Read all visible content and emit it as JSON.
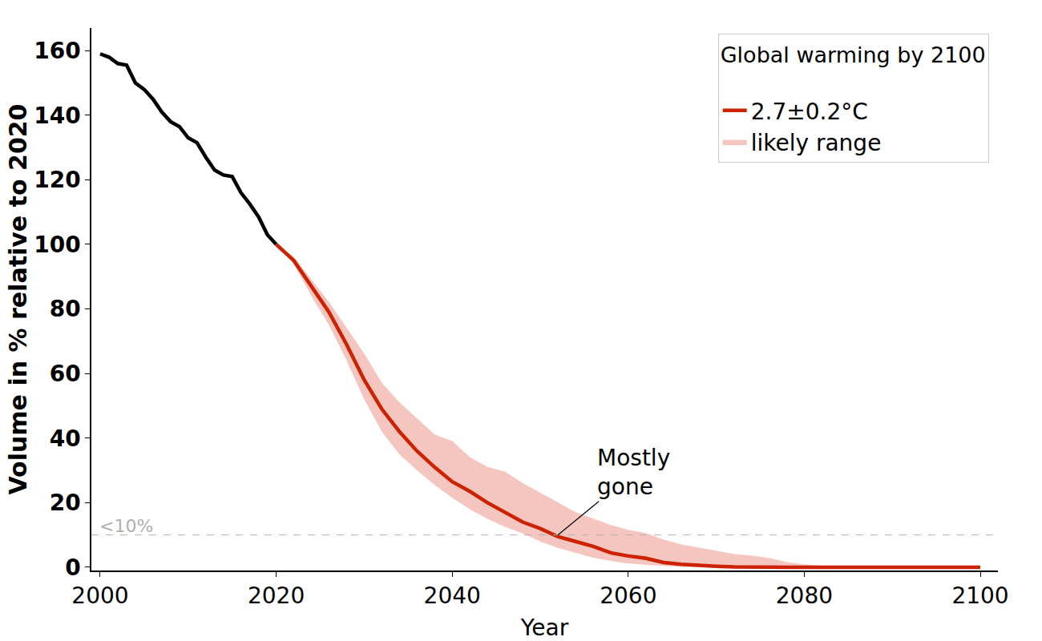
{
  "chart_data": {
    "type": "line",
    "x_label": "Year",
    "y_label": "Volume in % relative to 2020",
    "legend_title": "Global warming by 2100",
    "legend": "upper right",
    "grid": false,
    "xlim": [
      1999,
      2102
    ],
    "xticks": [
      2000,
      2020,
      2040,
      2060,
      2080,
      2100
    ],
    "ylim": [
      -1,
      167
    ],
    "yticks": [
      0,
      20,
      40,
      60,
      80,
      100,
      120,
      140,
      160
    ],
    "reference_line": {
      "value": 10,
      "label": "<10%",
      "color": "#b0b0b0",
      "line_style": "dashed"
    },
    "annotations": [
      {
        "text": "Mostly\ngone",
        "x": 2052,
        "y": 10
      }
    ],
    "series": [
      {
        "color": "#000000",
        "x": [
          2000,
          2001,
          2002,
          2003,
          2004,
          2005,
          2006,
          2007,
          2008,
          2009,
          2010,
          2011,
          2012,
          2013,
          2014,
          2015,
          2016,
          2017,
          2018,
          2019,
          2020
        ],
        "values": [
          159,
          158,
          156,
          155.5,
          150,
          148,
          145,
          141,
          138,
          136.5,
          133,
          131.5,
          127,
          123,
          121.5,
          121,
          116,
          112.5,
          108.5,
          103,
          100
        ]
      },
      {
        "name": "likely range",
        "type": "band",
        "color": "#f5c6c0",
        "x": [
          2020,
          2022,
          2024,
          2026,
          2028,
          2030,
          2032,
          2034,
          2036,
          2038,
          2040,
          2042,
          2044,
          2046,
          2048,
          2050,
          2052,
          2054,
          2056,
          2058,
          2060,
          2062,
          2064,
          2066,
          2068,
          2070,
          2072,
          2074,
          2076,
          2078,
          2080,
          2082,
          2084,
          2086,
          2088,
          2090,
          2092,
          2094,
          2096,
          2098,
          2100
        ],
        "lower": [
          100,
          94,
          84,
          75,
          64,
          52,
          42,
          35,
          30,
          25.5,
          21.5,
          18,
          15,
          12.5,
          10.5,
          8,
          6,
          4.5,
          3,
          2,
          1.2,
          0.8,
          0.4,
          0.2,
          0.1,
          0,
          0,
          0,
          0,
          0,
          0,
          0,
          0,
          0,
          0,
          0,
          0,
          0,
          0,
          0,
          0
        ],
        "upper": [
          100,
          96,
          89,
          82,
          74,
          66,
          57,
          51,
          46,
          41,
          39,
          34,
          31,
          29.5,
          26,
          23,
          20,
          17,
          15,
          13,
          11.5,
          10.5,
          8.5,
          7,
          6,
          5,
          4,
          3.5,
          2.8,
          1.5,
          0.8,
          0.4,
          0.2,
          0.1,
          0,
          0,
          0,
          0,
          0,
          0,
          0
        ]
      },
      {
        "name": "2.7±0.2°C",
        "color": "#cc2200",
        "x": [
          2020,
          2022,
          2024,
          2026,
          2028,
          2030,
          2032,
          2034,
          2036,
          2038,
          2040,
          2042,
          2044,
          2046,
          2048,
          2050,
          2052,
          2054,
          2056,
          2058,
          2060,
          2062,
          2064,
          2066,
          2068,
          2070,
          2072,
          2074,
          2076,
          2078,
          2080,
          2082,
          2084,
          2086,
          2088,
          2090,
          2092,
          2094,
          2096,
          2098,
          2100
        ],
        "values": [
          100,
          95,
          87,
          79,
          69,
          58,
          49,
          42,
          36,
          31,
          26.5,
          23.5,
          20,
          17,
          14,
          12,
          9.5,
          8,
          6.5,
          4.5,
          3.5,
          2.8,
          1.5,
          0.9,
          0.5,
          0.3,
          0.1,
          0,
          0,
          0,
          0,
          0,
          0,
          0,
          0,
          0,
          0,
          0,
          0,
          0,
          0
        ]
      }
    ]
  }
}
